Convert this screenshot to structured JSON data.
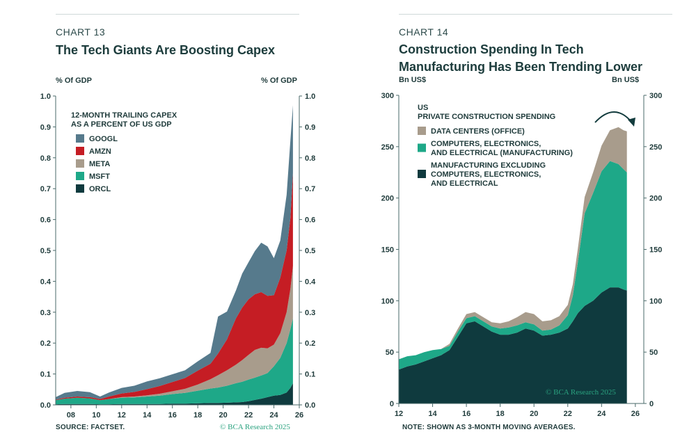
{
  "colors": {
    "googl": "#567a8c",
    "amzn": "#c51d24",
    "meta": "#a89c8c",
    "msft": "#1ea888",
    "orcl": "#0f3a3e",
    "data_centers": "#a89c8c",
    "computers": "#1ea888",
    "manufacturing": "#0f3a3e",
    "axis": "#4a6a6a",
    "brand": "#2aa27f"
  },
  "left": {
    "chart_number": "CHART 13",
    "title": "The Tech Giants Are Boosting Capex",
    "unit_left": "% Of GDP",
    "unit_right": "% Of GDP",
    "source": "SOURCE: FACTSET.",
    "copyright": "© BCA Research 2025"
  },
  "right": {
    "chart_number": "CHART 14",
    "title_line1": "Construction Spending In Tech",
    "title_line2": "Manufacturing Has Been Trending Lower",
    "unit_left": "Bn US$",
    "unit_right": "Bn US$",
    "note": "NOTE: SHOWN AS 3-MONTH MOVING AVERAGES.",
    "copyright": "© BCA Research 2025"
  },
  "chart_data": [
    {
      "type": "area",
      "stacked": true,
      "title": "The Tech Giants Are Boosting Capex",
      "legend_title_lines": [
        "12-MONTH TRAILING CAPEX",
        "AS A PERCENT OF US GDP"
      ],
      "ylabel_left": "% Of GDP",
      "ylabel_right": "% Of GDP",
      "xlim": [
        2006.8,
        2026.0
      ],
      "ylim": [
        0,
        1.0
      ],
      "yticks": [
        0.0,
        0.1,
        0.2,
        0.3,
        0.4,
        0.5,
        0.6,
        0.7,
        0.8,
        0.9,
        1.0
      ],
      "ytick_labels": [
        "0.0",
        "0.1",
        "0.2",
        "0.3",
        "0.4",
        "0.5",
        "0.6",
        "0.7",
        "0.8",
        "0.9",
        "1.0"
      ],
      "xticks": [
        2008,
        2010,
        2012,
        2014,
        2016,
        2018,
        2020,
        2022,
        2024,
        2026
      ],
      "xtick_labels": [
        "08",
        "10",
        "12",
        "14",
        "16",
        "18",
        "20",
        "22",
        "24",
        "26"
      ],
      "x": [
        2006.8,
        2007.5,
        2008.5,
        2009.5,
        2010.3,
        2011,
        2012,
        2013,
        2014,
        2015,
        2016,
        2017,
        2018,
        2019,
        2019.6,
        2020.3,
        2021,
        2021.5,
        2022,
        2022.5,
        2023,
        2023.5,
        2024,
        2024.5,
        2025,
        2025.3,
        2025.5
      ],
      "series": [
        {
          "name": "ORCL",
          "values": [
            0.002,
            0.003,
            0.003,
            0.003,
            0.002,
            0.002,
            0.003,
            0.003,
            0.003,
            0.003,
            0.004,
            0.004,
            0.005,
            0.006,
            0.006,
            0.007,
            0.008,
            0.009,
            0.012,
            0.016,
            0.02,
            0.025,
            0.03,
            0.032,
            0.04,
            0.055,
            0.07
          ]
        },
        {
          "name": "MSFT",
          "values": [
            0.013,
            0.017,
            0.02,
            0.018,
            0.013,
            0.017,
            0.02,
            0.021,
            0.024,
            0.027,
            0.031,
            0.035,
            0.041,
            0.047,
            0.05,
            0.055,
            0.062,
            0.066,
            0.07,
            0.072,
            0.075,
            0.078,
            0.095,
            0.12,
            0.16,
            0.19,
            0.21
          ]
        },
        {
          "name": "META",
          "values": [
            0.0,
            0.0,
            0.0,
            0.0,
            0.0,
            0.0,
            0.002,
            0.003,
            0.004,
            0.006,
            0.009,
            0.013,
            0.02,
            0.03,
            0.04,
            0.05,
            0.06,
            0.07,
            0.08,
            0.09,
            0.09,
            0.08,
            0.07,
            0.08,
            0.1,
            0.13,
            0.17
          ]
        },
        {
          "name": "AMZN",
          "values": [
            0.002,
            0.003,
            0.004,
            0.004,
            0.004,
            0.008,
            0.012,
            0.015,
            0.02,
            0.025,
            0.03,
            0.035,
            0.045,
            0.05,
            0.07,
            0.1,
            0.15,
            0.17,
            0.18,
            0.18,
            0.18,
            0.17,
            0.16,
            0.18,
            0.2,
            0.23,
            0.3
          ]
        },
        {
          "name": "GOOGL",
          "values": [
            0.008,
            0.016,
            0.018,
            0.016,
            0.008,
            0.013,
            0.018,
            0.02,
            0.025,
            0.025,
            0.025,
            0.025,
            0.03,
            0.035,
            0.12,
            0.09,
            0.09,
            0.11,
            0.12,
            0.14,
            0.16,
            0.16,
            0.12,
            0.12,
            0.18,
            0.25,
            0.22
          ]
        }
      ],
      "legend": [
        "GOOGL",
        "AMZN",
        "META",
        "MSFT",
        "ORCL"
      ],
      "source": "SOURCE: FACTSET."
    },
    {
      "type": "area",
      "stacked": true,
      "title": "Construction Spending In Tech Manufacturing Has Been Trending Lower",
      "legend_title_lines": [
        "US",
        "PRIVATE CONSTRUCTION SPENDING"
      ],
      "ylabel_left": "Bn US$",
      "ylabel_right": "Bn US$",
      "xlim": [
        2012,
        2026.5
      ],
      "ylim": [
        0,
        300
      ],
      "yticks": [
        0,
        50,
        100,
        150,
        200,
        250,
        300
      ],
      "ytick_labels": [
        "0",
        "50",
        "100",
        "150",
        "200",
        "250",
        "300"
      ],
      "xticks": [
        2012,
        2014,
        2016,
        2018,
        2020,
        2022,
        2024,
        2026
      ],
      "xtick_labels": [
        "12",
        "14",
        "16",
        "18",
        "20",
        "22",
        "24",
        "26"
      ],
      "x": [
        2012,
        2012.5,
        2013,
        2013.5,
        2014,
        2014.5,
        2015,
        2015.5,
        2016,
        2016.5,
        2017,
        2017.5,
        2018,
        2018.5,
        2019,
        2019.5,
        2020,
        2020.5,
        2021,
        2021.5,
        2022,
        2022.3,
        2022.6,
        2023,
        2023.5,
        2024,
        2024.5,
        2025,
        2025.3,
        2025.5
      ],
      "series": [
        {
          "name": "MANUFACTURING EXCLUDING COMPUTERS, ELECTRONICS, AND ELECTRICAL",
          "values": [
            33,
            36,
            38,
            41,
            44,
            47,
            52,
            65,
            78,
            80,
            75,
            70,
            67,
            67,
            69,
            73,
            71,
            66,
            67,
            69,
            73,
            80,
            88,
            95,
            100,
            108,
            113,
            113,
            111,
            110
          ]
        },
        {
          "name": "COMPUTERS, ELECTRONICS, AND ELECTRICAL (MANUFACTURING)",
          "values": [
            10,
            10,
            9,
            9,
            8,
            6,
            4,
            5,
            5,
            5,
            5,
            5,
            6,
            7,
            7,
            6,
            6,
            5,
            5,
            7,
            13,
            25,
            50,
            90,
            105,
            118,
            123,
            120,
            117,
            115
          ]
        },
        {
          "name": "DATA CENTERS (OFFICE)",
          "values": [
            0,
            0,
            0,
            0,
            0,
            0,
            2,
            3,
            4,
            4,
            4,
            4,
            5,
            6,
            8,
            10,
            10,
            9,
            9,
            9,
            10,
            11,
            13,
            16,
            20,
            25,
            30,
            36,
            38,
            40
          ]
        }
      ],
      "legend": [
        "DATA CENTERS (OFFICE)",
        "COMPUTERS, ELECTRONICS, AND ELECTRICAL (MANUFACTURING)",
        "MANUFACTURING EXCLUDING COMPUTERS, ELECTRONICS, AND ELECTRICAL"
      ],
      "legend_label_lines": [
        [
          "DATA CENTERS (OFFICE)"
        ],
        [
          "COMPUTERS, ELECTRONICS,",
          "AND ELECTRICAL (MANUFACTURING)"
        ],
        [
          "MANUFACTURING EXCLUDING",
          "COMPUTERS, ELECTRONICS,",
          "AND ELECTRICAL"
        ]
      ],
      "note": "NOTE: SHOWN AS 3-MONTH MOVING AVERAGES."
    }
  ]
}
